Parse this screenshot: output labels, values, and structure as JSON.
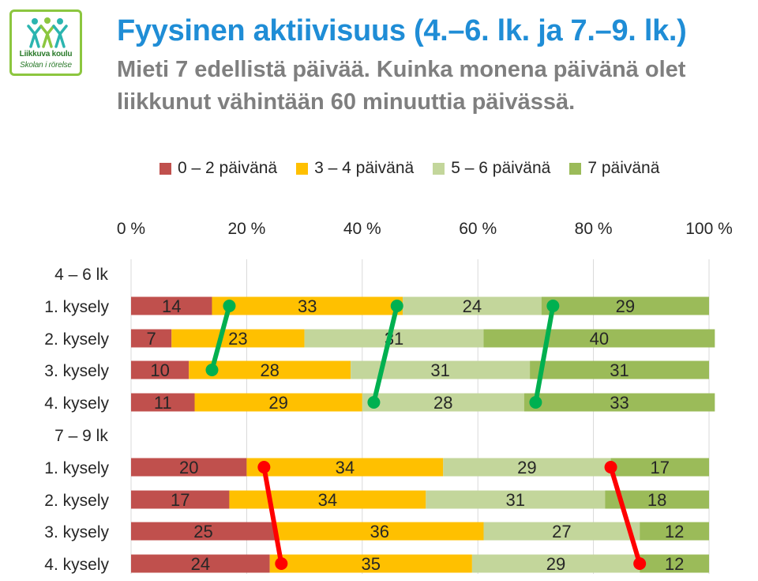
{
  "logo": {
    "line1": "Liikkuva koulu",
    "line2": "Skolan i rörelse"
  },
  "header": {
    "title": "Fyysinen aktiivisuus (4.–6. lk. ja 7.–9. lk.)",
    "subtitle": "Mieti 7 edellistä päivää. Kuinka monena päivänä olet liikkunut vähintään 60 minuuttia päivässä."
  },
  "colors": {
    "title": "#1f8dd6",
    "subtitle": "#7f7f7f",
    "series": [
      "#c0504d",
      "#ffc000",
      "#c3d69b",
      "#9bbb59"
    ],
    "connector_green": "#00b050",
    "connector_red": "#ff0000"
  },
  "chart_data": {
    "type": "bar",
    "orientation": "horizontal",
    "stacked": "100%",
    "x_axis": {
      "range": [
        0,
        100
      ],
      "ticks": [
        "0 %",
        "20 %",
        "40 %",
        "60 %",
        "80 %",
        "100 %"
      ],
      "position": "top",
      "grid": true
    },
    "legend": {
      "position": "top"
    },
    "groups": [
      {
        "label": "4 – 6 lk",
        "rows": [
          "1. kysely",
          "2. kysely",
          "3. kysely",
          "4. kysely"
        ]
      },
      {
        "label": "7 – 9 lk",
        "rows": [
          "1. kysely",
          "2. kysely",
          "3. kysely",
          "4. kysely"
        ]
      }
    ],
    "series": [
      {
        "name": "0 – 2 päivänä",
        "values": [
          14,
          7,
          10,
          11,
          20,
          17,
          25,
          24
        ]
      },
      {
        "name": "3 – 4 päivänä",
        "values": [
          33,
          23,
          28,
          29,
          34,
          34,
          36,
          35
        ]
      },
      {
        "name": "5 – 6 päivänä",
        "values": [
          24,
          31,
          31,
          28,
          29,
          31,
          27,
          29
        ]
      },
      {
        "name": "7 päivänä",
        "values": [
          29,
          40,
          31,
          33,
          17,
          18,
          12,
          12
        ]
      }
    ],
    "annotations": [
      {
        "type": "connector",
        "color": "green",
        "from": {
          "row": 0,
          "value": 17
        },
        "to": {
          "row": 2,
          "value": 14
        }
      },
      {
        "type": "connector",
        "color": "green",
        "from": {
          "row": 0,
          "value": 46
        },
        "to": {
          "row": 3,
          "value": 42
        }
      },
      {
        "type": "connector",
        "color": "green",
        "from": {
          "row": 0,
          "value": 73
        },
        "to": {
          "row": 3,
          "value": 70
        }
      },
      {
        "type": "connector",
        "color": "red",
        "from": {
          "row": 4,
          "value": 23
        },
        "to": {
          "row": 7,
          "value": 26
        }
      },
      {
        "type": "connector",
        "color": "red",
        "from": {
          "row": 4,
          "value": 83
        },
        "to": {
          "row": 7,
          "value": 88
        }
      }
    ]
  }
}
